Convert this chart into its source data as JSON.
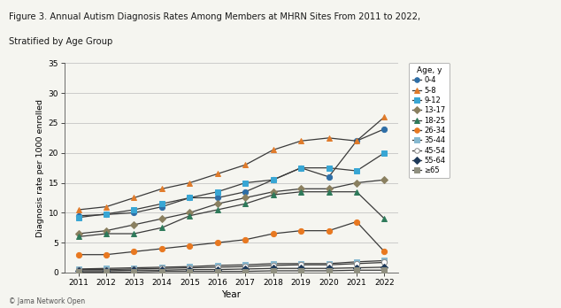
{
  "title_line1": "Figure 3. Annual Autism Diagnosis Rates Among Members at MHRN Sites From 2011 to 2022,",
  "title_line2": "Stratified by Age Group",
  "xlabel": "Year",
  "ylabel": "Diagnosis rate per 1000 enrolled",
  "years": [
    2011,
    2012,
    2013,
    2014,
    2015,
    2016,
    2017,
    2018,
    2019,
    2020,
    2021,
    2022
  ],
  "series": {
    "0-4": [
      9.5,
      9.7,
      10.0,
      11.0,
      12.5,
      12.5,
      13.5,
      15.5,
      17.5,
      16.0,
      22.0,
      24.0
    ],
    "5-8": [
      10.5,
      11.0,
      12.5,
      14.0,
      15.0,
      16.5,
      18.0,
      20.5,
      22.0,
      22.5,
      22.0,
      26.0
    ],
    "9-12": [
      9.2,
      9.8,
      10.5,
      11.5,
      12.5,
      13.5,
      15.0,
      15.5,
      17.5,
      17.5,
      17.0,
      20.0
    ],
    "13-17": [
      6.5,
      7.0,
      8.0,
      9.0,
      10.0,
      11.5,
      12.5,
      13.5,
      14.0,
      14.0,
      15.0,
      15.5
    ],
    "18-25": [
      6.0,
      6.5,
      6.5,
      7.5,
      9.5,
      10.5,
      11.5,
      13.0,
      13.5,
      13.5,
      13.5,
      9.0
    ],
    "26-34": [
      3.0,
      3.0,
      3.5,
      4.0,
      4.5,
      5.0,
      5.5,
      6.5,
      7.0,
      7.0,
      8.5,
      3.5
    ],
    "35-44": [
      0.6,
      0.7,
      0.8,
      0.9,
      1.0,
      1.2,
      1.3,
      1.5,
      1.5,
      1.5,
      1.8,
      2.0
    ],
    "45-54": [
      0.5,
      0.5,
      0.6,
      0.7,
      0.8,
      0.9,
      1.0,
      1.2,
      1.3,
      1.3,
      1.5,
      1.7
    ],
    "55-64": [
      0.3,
      0.3,
      0.4,
      0.4,
      0.5,
      0.5,
      0.6,
      0.7,
      0.7,
      0.7,
      0.8,
      0.9
    ],
    "≥65": [
      0.1,
      0.1,
      0.1,
      0.2,
      0.2,
      0.2,
      0.2,
      0.3,
      0.3,
      0.3,
      0.4,
      0.4
    ]
  },
  "line_color": "#3a3a3a",
  "marker_colors": {
    "0-4": "#2e6ea6",
    "5-8": "#e07b2a",
    "9-12": "#38a6d4",
    "13-17": "#8a8060",
    "18-25": "#2e7a5a",
    "26-34": "#e87820",
    "35-44": "#85b8d0",
    "45-54": "#ffffff",
    "55-64": "#1e3a5a",
    "≥65": "#909080"
  },
  "marker_edge_colors": {
    "0-4": "#2e6ea6",
    "5-8": "#e07b2a",
    "9-12": "#38a6d4",
    "13-17": "#8a8060",
    "18-25": "#2e7a5a",
    "26-34": "#e87820",
    "35-44": "#85b8d0",
    "45-54": "#888888",
    "55-64": "#1e3a5a",
    "≥65": "#909080"
  },
  "markers": {
    "0-4": "o",
    "5-8": "^",
    "9-12": "s",
    "13-17": "D",
    "18-25": "^",
    "26-34": "o",
    "35-44": "s",
    "45-54": "o",
    "55-64": "D",
    "≥65": "s"
  },
  "ylim": [
    0,
    35
  ],
  "yticks": [
    0,
    5,
    10,
    15,
    20,
    25,
    30,
    35
  ],
  "legend_title": "Age, y",
  "background_color": "#f5f5f0",
  "plot_bg_color": "#f5f5f0",
  "top_bar_color": "#c0006a",
  "copyright": "© Jama Network Open",
  "markersize": 4.5
}
